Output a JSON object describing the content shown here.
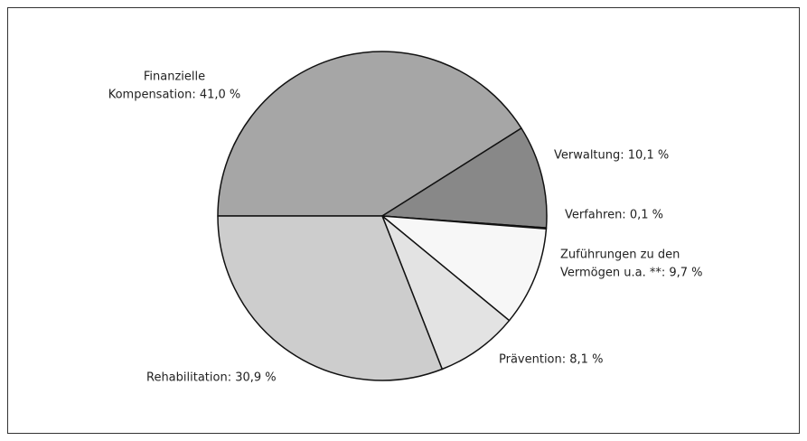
{
  "chart_data": {
    "type": "pie",
    "categories": [
      "Finanzielle Kompensation",
      "Verwaltung",
      "Verfahren",
      "Zuführungen zu den Vermögen u.a. **",
      "Prävention",
      "Rehabilitation"
    ],
    "values": [
      41.0,
      10.1,
      0.1,
      9.7,
      8.1,
      30.9
    ],
    "value_labels": [
      [
        "Finanzielle",
        "Kompensation: 41,0 %"
      ],
      [
        "Verwaltung: 10,1 %"
      ],
      [
        "Verfahren: 0,1 %"
      ],
      [
        "Zuführungen zu den",
        "Vermögen u.a. **: 9,7 %"
      ],
      [
        "Prävention: 8,1 %"
      ],
      [
        "Rehabilitation: 30,9 %"
      ]
    ],
    "colors": [
      "#a6a6a6",
      "#888888",
      "#555555",
      "#f7f7f7",
      "#e3e3e3",
      "#cdcdcd"
    ]
  }
}
